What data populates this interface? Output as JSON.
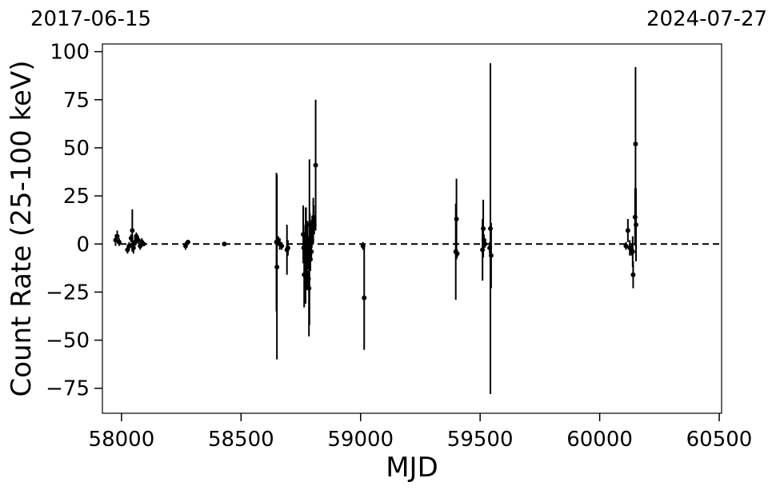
{
  "chart_data": {
    "type": "scatter",
    "xlabel": "MJD",
    "ylabel": "Count Rate (25-100 keV)",
    "top_left_label": "2017-06-15",
    "top_right_label": "2024-07-27",
    "xlim": [
      57920,
      60510
    ],
    "ylim": [
      -88,
      104
    ],
    "x_ticks": [
      58000,
      58500,
      59000,
      59500,
      60000,
      60500
    ],
    "y_ticks": [
      100,
      75,
      50,
      25,
      0,
      -25,
      -50,
      -75
    ],
    "y_tick_labels": [
      "100",
      "75",
      "50",
      "25",
      "0",
      "−25",
      "−50",
      "−75"
    ],
    "reference_line": {
      "y": 0,
      "style": "dashed",
      "color": "#000000"
    },
    "marker_color": "#000000",
    "grid": false,
    "series": [
      {
        "points": [
          {
            "x": 57975,
            "y": 2,
            "err": 3
          },
          {
            "x": 57982,
            "y": 4,
            "err": 3
          },
          {
            "x": 57990,
            "y": 1,
            "err": 2
          },
          {
            "x": 58025,
            "y": -3,
            "err": 2
          },
          {
            "x": 58032,
            "y": -1,
            "err": 2
          },
          {
            "x": 58040,
            "y": 3,
            "err": 2
          },
          {
            "x": 58045,
            "y": 7,
            "err": 11
          },
          {
            "x": 58050,
            "y": -2,
            "err": 3
          },
          {
            "x": 58056,
            "y": 1,
            "err": 2
          },
          {
            "x": 58062,
            "y": 4,
            "err": 2
          },
          {
            "x": 58070,
            "y": 2,
            "err": 2
          },
          {
            "x": 58078,
            "y": -1,
            "err": 2
          },
          {
            "x": 58085,
            "y": 1,
            "err": 2
          },
          {
            "x": 58092,
            "y": 0,
            "err": 1
          },
          {
            "x": 58268,
            "y": -1,
            "err": 2
          },
          {
            "x": 58278,
            "y": 1,
            "err": 1
          },
          {
            "x": 58430,
            "y": 0,
            "err": 1
          },
          {
            "x": 58648,
            "y": 1,
            "err": 36
          },
          {
            "x": 58650,
            "y": -12,
            "err": 48
          },
          {
            "x": 58656,
            "y": 2,
            "err": 2
          },
          {
            "x": 58662,
            "y": 0,
            "err": 3
          },
          {
            "x": 58670,
            "y": -1,
            "err": 2
          },
          {
            "x": 58692,
            "y": -3,
            "err": 13
          },
          {
            "x": 58696,
            "y": -2,
            "err": 4
          },
          {
            "x": 58760,
            "y": 5,
            "err": 15
          },
          {
            "x": 58762,
            "y": -2,
            "err": 6
          },
          {
            "x": 58764,
            "y": -16,
            "err": 17
          },
          {
            "x": 58766,
            "y": -4,
            "err": 8
          },
          {
            "x": 58768,
            "y": 2,
            "err": 8
          },
          {
            "x": 58770,
            "y": -6,
            "err": 25
          },
          {
            "x": 58772,
            "y": 1,
            "err": 18
          },
          {
            "x": 58774,
            "y": -8,
            "err": 16
          },
          {
            "x": 58776,
            "y": -12,
            "err": 12
          },
          {
            "x": 58778,
            "y": 3,
            "err": 9
          },
          {
            "x": 58780,
            "y": -4,
            "err": 8
          },
          {
            "x": 58782,
            "y": -18,
            "err": 4
          },
          {
            "x": 58784,
            "y": -23,
            "err": 25
          },
          {
            "x": 58786,
            "y": 1,
            "err": 43
          },
          {
            "x": 58788,
            "y": 10,
            "err": 6
          },
          {
            "x": 58790,
            "y": -8,
            "err": 6
          },
          {
            "x": 58792,
            "y": 3,
            "err": 5
          },
          {
            "x": 58794,
            "y": -4,
            "err": 4
          },
          {
            "x": 58796,
            "y": 2,
            "err": 4
          },
          {
            "x": 58798,
            "y": 8,
            "err": 6
          },
          {
            "x": 58800,
            "y": 11,
            "err": 4
          },
          {
            "x": 58802,
            "y": 12,
            "err": 12
          },
          {
            "x": 58804,
            "y": 14,
            "err": 6
          },
          {
            "x": 58806,
            "y": 10,
            "err": 5
          },
          {
            "x": 58812,
            "y": 41,
            "err": 34
          },
          {
            "x": 59010,
            "y": -1,
            "err": 2
          },
          {
            "x": 59015,
            "y": -28,
            "err": 27
          },
          {
            "x": 59398,
            "y": -4,
            "err": 25
          },
          {
            "x": 59401,
            "y": 13,
            "err": 21
          },
          {
            "x": 59404,
            "y": -5,
            "err": 2
          },
          {
            "x": 59510,
            "y": -3,
            "err": 16
          },
          {
            "x": 59513,
            "y": 8,
            "err": 15
          },
          {
            "x": 59516,
            "y": 2,
            "err": 3
          },
          {
            "x": 59520,
            "y": 0,
            "err": 2
          },
          {
            "x": 59540,
            "y": -2,
            "err": 3
          },
          {
            "x": 59543,
            "y": 8,
            "err": 86
          },
          {
            "x": 59546,
            "y": -6,
            "err": 17
          },
          {
            "x": 60110,
            "y": -1,
            "err": 2
          },
          {
            "x": 60118,
            "y": 7,
            "err": 6
          },
          {
            "x": 60126,
            "y": -2,
            "err": 4
          },
          {
            "x": 60133,
            "y": -3,
            "err": 3
          },
          {
            "x": 60138,
            "y": -4,
            "err": 8
          },
          {
            "x": 60140,
            "y": -16,
            "err": 7
          },
          {
            "x": 60148,
            "y": 14,
            "err": 15
          },
          {
            "x": 60150,
            "y": 52,
            "err": 40
          },
          {
            "x": 60152,
            "y": 10,
            "err": 19
          }
        ]
      }
    ]
  }
}
